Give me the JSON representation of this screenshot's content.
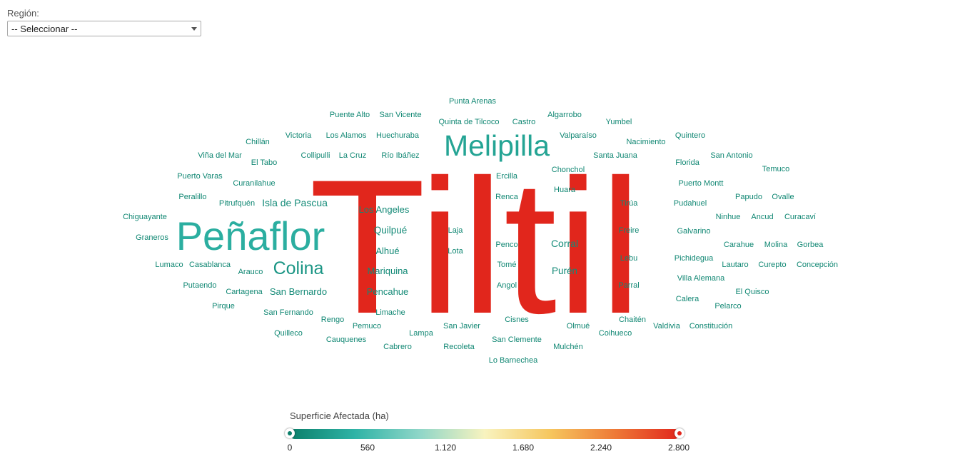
{
  "filter": {
    "label": "Región:",
    "selected": "-- Seleccionar --"
  },
  "legend": {
    "title": "Superficie Afectada (ha)",
    "ticks": [
      "0",
      "560",
      "1.120",
      "1.680",
      "2.240",
      "2.800"
    ],
    "min": 0,
    "max": 2800,
    "colors": [
      "#0b7f6a",
      "#2fb3a6",
      "#8fd6c8",
      "#f8f3bf",
      "#f6c75f",
      "#ee7a37",
      "#e1261c"
    ],
    "handle_min_color": "#0b7f6a",
    "handle_max_color": "#e1261c"
  },
  "chart_data": {
    "type": "wordcloud",
    "value_label": "Superficie Afectada (ha)",
    "range": [
      0,
      2800
    ],
    "words": [
      {
        "text": "Tiltil",
        "value": 2800
      },
      {
        "text": "Peñaflor",
        "value": 420
      },
      {
        "text": "Melipilla",
        "value": 330
      },
      {
        "text": "Colina",
        "value": 200
      },
      {
        "text": "Isla de Pascua",
        "value": 110
      },
      {
        "text": "Corral",
        "value": 110
      },
      {
        "text": "Quilpué",
        "value": 100
      },
      {
        "text": "Purén",
        "value": 100
      },
      {
        "text": "Los Angeles",
        "value": 90
      },
      {
        "text": "Alhué",
        "value": 90
      },
      {
        "text": "Mariquina",
        "value": 90
      },
      {
        "text": "Pencahue",
        "value": 90
      },
      {
        "text": "San Bernardo",
        "value": 90
      },
      {
        "text": "Punta Arenas",
        "value": 70
      },
      {
        "text": "Puente Alto",
        "value": 70
      },
      {
        "text": "San Vicente",
        "value": 70
      },
      {
        "text": "Quinta de Tilcoco",
        "value": 70
      },
      {
        "text": "Castro",
        "value": 70
      },
      {
        "text": "Algarrobo",
        "value": 70
      },
      {
        "text": "Yumbel",
        "value": 70
      },
      {
        "text": "Chillán",
        "value": 70
      },
      {
        "text": "Victoria",
        "value": 70
      },
      {
        "text": "Los Alamos",
        "value": 70
      },
      {
        "text": "Huechuraba",
        "value": 70
      },
      {
        "text": "Valparaíso",
        "value": 70
      },
      {
        "text": "Nacimiento",
        "value": 70
      },
      {
        "text": "Quintero",
        "value": 70
      },
      {
        "text": "Viña del Mar",
        "value": 70
      },
      {
        "text": "Collipulli",
        "value": 70
      },
      {
        "text": "La Cruz",
        "value": 70
      },
      {
        "text": "Río Ibáñez",
        "value": 70
      },
      {
        "text": "Santa Juana",
        "value": 70
      },
      {
        "text": "San Antonio",
        "value": 70
      },
      {
        "text": "El Tabo",
        "value": 70
      },
      {
        "text": "Florida",
        "value": 70
      },
      {
        "text": "Temuco",
        "value": 70
      },
      {
        "text": "Chonchol",
        "value": 70
      },
      {
        "text": "Ercilla",
        "value": 70
      },
      {
        "text": "Puerto Varas",
        "value": 70
      },
      {
        "text": "Curanilahue",
        "value": 70
      },
      {
        "text": "Puerto Montt",
        "value": 70
      },
      {
        "text": "Huara",
        "value": 70
      },
      {
        "text": "Papudo",
        "value": 70
      },
      {
        "text": "Ovalle",
        "value": 70
      },
      {
        "text": "Renca",
        "value": 70
      },
      {
        "text": "Peralillo",
        "value": 70
      },
      {
        "text": "Pitrufquén",
        "value": 70
      },
      {
        "text": "Tirúa",
        "value": 70
      },
      {
        "text": "Pudahuel",
        "value": 70
      },
      {
        "text": "Chiguayante",
        "value": 70
      },
      {
        "text": "Ninhue",
        "value": 70
      },
      {
        "text": "Ancud",
        "value": 70
      },
      {
        "text": "Curacaví",
        "value": 70
      },
      {
        "text": "Laja",
        "value": 70
      },
      {
        "text": "Freire",
        "value": 70
      },
      {
        "text": "Galvarino",
        "value": 70
      },
      {
        "text": "Graneros",
        "value": 70
      },
      {
        "text": "Penco",
        "value": 70
      },
      {
        "text": "Carahue",
        "value": 70
      },
      {
        "text": "Molina",
        "value": 70
      },
      {
        "text": "Gorbea",
        "value": 70
      },
      {
        "text": "Lota",
        "value": 70
      },
      {
        "text": "Lebu",
        "value": 70
      },
      {
        "text": "Pichidegua",
        "value": 70
      },
      {
        "text": "Lumaco",
        "value": 70
      },
      {
        "text": "Casablanca",
        "value": 70
      },
      {
        "text": "Tomé",
        "value": 70
      },
      {
        "text": "Lautaro",
        "value": 70
      },
      {
        "text": "Curepto",
        "value": 70
      },
      {
        "text": "Concepción",
        "value": 70
      },
      {
        "text": "Arauco",
        "value": 70
      },
      {
        "text": "Villa Alemana",
        "value": 70
      },
      {
        "text": "Putaendo",
        "value": 70
      },
      {
        "text": "Angol",
        "value": 70
      },
      {
        "text": "Parral",
        "value": 70
      },
      {
        "text": "Cartagena",
        "value": 70
      },
      {
        "text": "El Quisco",
        "value": 70
      },
      {
        "text": "Calera",
        "value": 70
      },
      {
        "text": "Pirque",
        "value": 70
      },
      {
        "text": "Pelarco",
        "value": 70
      },
      {
        "text": "Limache",
        "value": 70
      },
      {
        "text": "San Fernando",
        "value": 70
      },
      {
        "text": "Rengo",
        "value": 70
      },
      {
        "text": "Cisnes",
        "value": 70
      },
      {
        "text": "Chaitén",
        "value": 70
      },
      {
        "text": "Pemuco",
        "value": 70
      },
      {
        "text": "San Javier",
        "value": 70
      },
      {
        "text": "Olmué",
        "value": 70
      },
      {
        "text": "Valdivia",
        "value": 70
      },
      {
        "text": "Constitución",
        "value": 70
      },
      {
        "text": "Quilleco",
        "value": 70
      },
      {
        "text": "Lampa",
        "value": 70
      },
      {
        "text": "Coihueco",
        "value": 70
      },
      {
        "text": "Cauquenes",
        "value": 70
      },
      {
        "text": "San Clemente",
        "value": 70
      },
      {
        "text": "Cabrero",
        "value": 70
      },
      {
        "text": "Recoleta",
        "value": 70
      },
      {
        "text": "Mulchén",
        "value": 70
      },
      {
        "text": "Lo Barnechea",
        "value": 70
      }
    ]
  }
}
